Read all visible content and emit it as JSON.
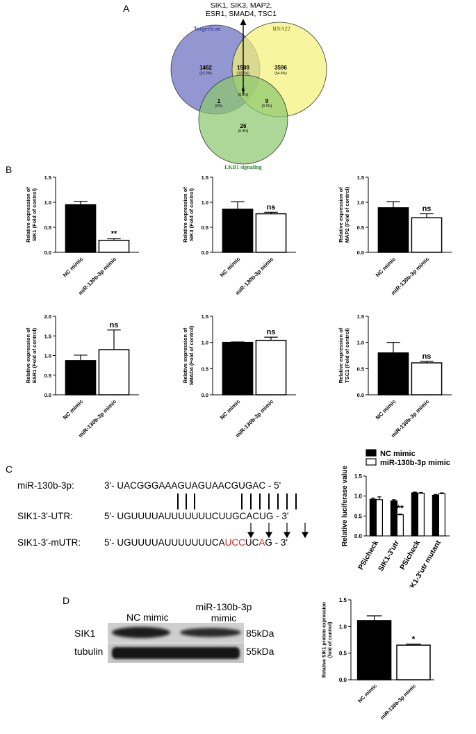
{
  "panels": {
    "a": "A",
    "b": "B",
    "c": "C",
    "d": "D"
  },
  "venn": {
    "genes_label": [
      "SIK1, SIK3, MAP2,",
      "ESR1, SMAD4, TSC1"
    ],
    "sets": [
      {
        "name": "TargetScan",
        "color": "#6a6fbf"
      },
      {
        "name": "RNA22",
        "color": "#f4f27a"
      },
      {
        "name": "LKB1 signaling",
        "color": "#8cc86e"
      }
    ],
    "label_colors": {
      "TargetScan": "#3e4aa8",
      "RNA22": "#8a8a2a",
      "LKB1 signaling": "#2e8a2e"
    },
    "regions": [
      {
        "id": "ts-only",
        "count": "1462",
        "pct": "(22.2%)"
      },
      {
        "id": "ts-rna22",
        "count": "1500",
        "pct": "(22.7%)"
      },
      {
        "id": "rna22-only",
        "count": "3596",
        "pct": "(54.5%)"
      },
      {
        "id": "all-three",
        "count": "6",
        "pct": "(0.1%)"
      },
      {
        "id": "ts-lkb1",
        "count": "1",
        "pct": "(0%)"
      },
      {
        "id": "rna22-lkb1",
        "count": "9",
        "pct": "(0.1%)"
      },
      {
        "id": "lkb1-only",
        "count": "26",
        "pct": "(0.4%)"
      }
    ]
  },
  "chart_data": [
    {
      "type": "bar",
      "id": "sik1",
      "ylabel": [
        "Relative expression of",
        "SIK1 (Fold of control)"
      ],
      "categories": [
        "NC mimic",
        "miR-130b-3p mimic"
      ],
      "values": [
        0.95,
        0.24
      ],
      "errors": [
        0.07,
        0.03
      ],
      "sig": "**",
      "ylim": [
        0,
        1.5
      ],
      "yticks": [
        "0.0",
        "0.5",
        "1.0",
        "1.5"
      ],
      "ytick_values": [
        0,
        0.5,
        1.0,
        1.5
      ]
    },
    {
      "type": "bar",
      "id": "sik3",
      "ylabel": [
        "Relative expression of",
        "SIK3 (Fold of control)"
      ],
      "categories": [
        "NC mimic",
        "miR-130b-3p mimic"
      ],
      "values": [
        0.86,
        0.77
      ],
      "errors": [
        0.15,
        0.03
      ],
      "sig": "ns",
      "ylim": [
        0,
        1.5
      ],
      "yticks": [
        "0.0",
        "0.5",
        "1.0",
        "1.5"
      ],
      "ytick_values": [
        0,
        0.5,
        1.0,
        1.5
      ]
    },
    {
      "type": "bar",
      "id": "map2",
      "ylabel": [
        "Relative expression of",
        "MAP2 (Fold of control)"
      ],
      "categories": [
        "NC mimic",
        "miR-130b-3p mimic"
      ],
      "values": [
        0.89,
        0.69
      ],
      "errors": [
        0.12,
        0.08
      ],
      "sig": "ns",
      "ylim": [
        0,
        1.5
      ],
      "yticks": [
        "0.0",
        "0.5",
        "1.0",
        "1.5"
      ],
      "ytick_values": [
        0,
        0.5,
        1.0,
        1.5
      ]
    },
    {
      "type": "bar",
      "id": "esr1",
      "ylabel": [
        "Relative expression of",
        "ESR1 (Fold of control)"
      ],
      "categories": [
        "NC mimic",
        "miR-130b-3p mimic"
      ],
      "values": [
        0.87,
        1.15
      ],
      "errors": [
        0.14,
        0.5
      ],
      "sig": "ns",
      "ylim": [
        0,
        2.0
      ],
      "yticks": [
        "0.0",
        "0.5",
        "1.0",
        "1.5",
        "2.0"
      ],
      "ytick_values": [
        0,
        0.5,
        1.0,
        1.5,
        2.0
      ]
    },
    {
      "type": "bar",
      "id": "smad4",
      "ylabel": [
        "Relative expression of",
        "SMAD4 (Fold of control)"
      ],
      "categories": [
        "NC mimic",
        "miR-130b-3p mimic"
      ],
      "values": [
        1.0,
        1.04
      ],
      "errors": [
        0.01,
        0.06
      ],
      "sig": "ns",
      "ylim": [
        0,
        1.5
      ],
      "yticks": [
        "0.0",
        "0.5",
        "1.0",
        "1.5"
      ],
      "ytick_values": [
        0,
        0.5,
        1.0,
        1.5
      ]
    },
    {
      "type": "bar",
      "id": "tsc1",
      "ylabel": [
        "Relative expression of",
        "TSC1 (Fold of control)"
      ],
      "categories": [
        "NC mimic",
        "miR-130b-3p mimic"
      ],
      "values": [
        0.8,
        0.61
      ],
      "errors": [
        0.2,
        0.03
      ],
      "sig": "ns",
      "ylim": [
        0,
        1.5
      ],
      "yticks": [
        "0.0",
        "0.5",
        "1.0",
        "1.5"
      ],
      "ytick_values": [
        0,
        0.5,
        1.0,
        1.5
      ]
    },
    {
      "type": "bar",
      "id": "luciferase",
      "ylabel": [
        "Relative luciferase value"
      ],
      "categories": [
        "PSicheck",
        "SIK1-3'utr",
        "PSicheck",
        "SIK1-3'utr mutant"
      ],
      "series": [
        {
          "name": "NC mimic",
          "values": [
            0.92,
            0.88,
            1.08,
            1.02
          ],
          "errors": [
            0.03,
            0.03,
            0.02,
            0.02
          ]
        },
        {
          "name": "miR-130b-3p mimic",
          "values": [
            0.91,
            0.53,
            1.07,
            1.06
          ],
          "errors": [
            0.07,
            0.02,
            0.02,
            0.02
          ]
        }
      ],
      "sig": {
        "category": 1,
        "text": "**"
      },
      "ylim": [
        0,
        1.5
      ],
      "yticks": [
        "0.0",
        "0.5",
        "1.0",
        "1.5"
      ],
      "ytick_values": [
        0,
        0.5,
        1.0,
        1.5
      ],
      "legend": "top-right"
    },
    {
      "type": "bar",
      "id": "sik1-protein",
      "ylabel": [
        "Relative SIK1 protein expression",
        "(fold of control)"
      ],
      "categories": [
        "NC mimic",
        "miR-130b-3p mimic"
      ],
      "values": [
        1.11,
        0.65
      ],
      "errors": [
        0.09,
        0.02
      ],
      "sig": "*",
      "ylim": [
        0,
        1.5
      ],
      "yticks": [
        "0.0",
        "0.5",
        "1.0",
        "1.5"
      ],
      "ytick_values": [
        0,
        0.5,
        1.0,
        1.5
      ]
    }
  ],
  "sequences": {
    "rows": [
      {
        "label": "miR-130b-3p:",
        "seq": "3'- UACGGGAAAGUAGUAACGUGAC - 5'"
      },
      {
        "label": "SIK1-3'-UTR:",
        "seq": "5'- UGUUUUAUUUUUUUCUUGCACUG - 3'"
      },
      {
        "label": "SIK1-3'-mUTR:",
        "seq_parts": [
          {
            "t": "5'- UGUUUUAUUUUUUUC",
            "red": false
          },
          {
            "t": "A",
            "red": false
          },
          {
            "t": "UCC",
            "red": true
          },
          {
            "t": "UC",
            "red": false
          },
          {
            "t": "A",
            "red": true
          },
          {
            "t": "G - 3'",
            "red": false
          }
        ]
      }
    ],
    "mutation_color": "#e02020"
  },
  "western": {
    "col_labels": [
      "NC mimic",
      "miR-130b-3p",
      "mimic"
    ],
    "rows": [
      {
        "label": "SIK1",
        "size": "85kDa"
      },
      {
        "label": "tubulin",
        "size": "55kDa"
      }
    ]
  }
}
